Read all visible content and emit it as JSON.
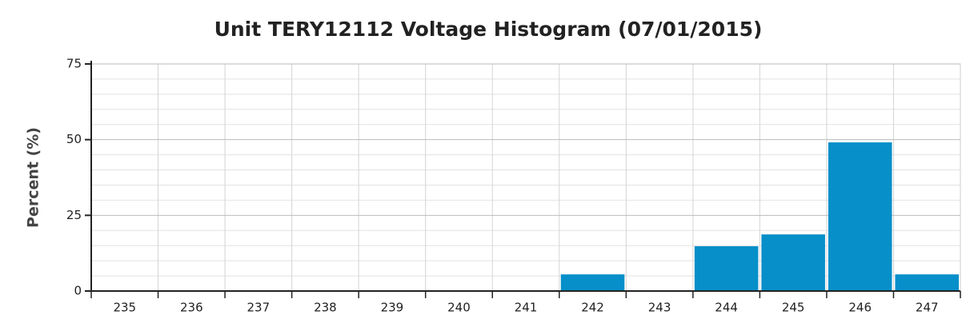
{
  "chart_data": {
    "type": "bar",
    "title": "Unit TERY12112 Voltage Histogram (07/01/2015)",
    "y_label": "Percent (%)",
    "categories": [
      "235",
      "236",
      "237",
      "238",
      "239",
      "240",
      "241",
      "242",
      "243",
      "244",
      "245",
      "246",
      "247"
    ],
    "values": [
      0,
      0,
      0,
      0,
      0,
      0,
      0,
      5.5,
      0,
      14.8,
      18.7,
      49.1,
      5.5
    ],
    "color": "#078fc9",
    "ylim": [
      0,
      75
    ],
    "yticks": [
      0,
      25,
      50,
      75
    ],
    "y_minor_ticks": [
      5,
      10,
      15,
      20,
      30,
      35,
      40,
      45,
      55,
      60,
      65,
      70
    ],
    "grid": true
  }
}
